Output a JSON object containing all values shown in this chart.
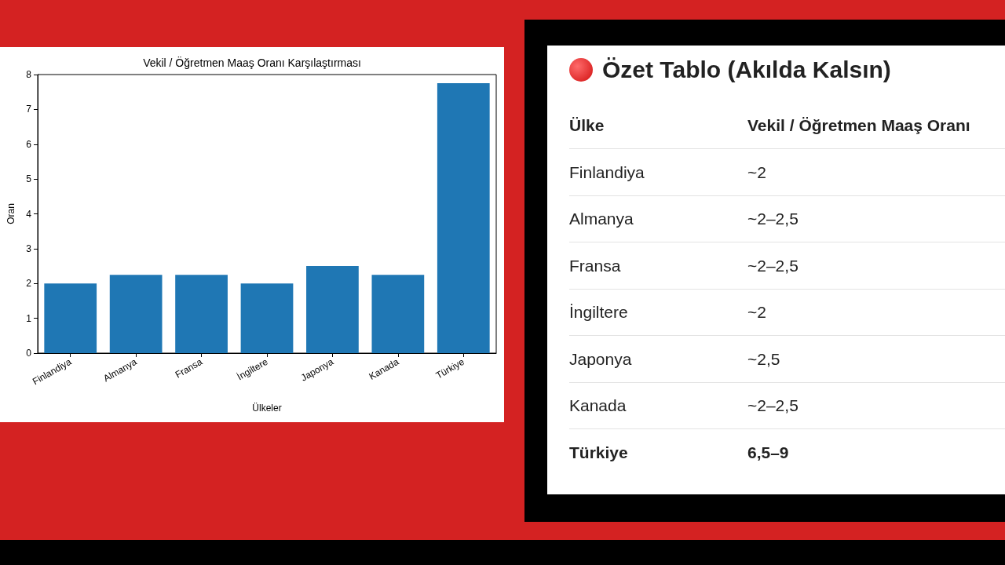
{
  "chart_data": [
    {
      "type": "bar",
      "title": "Vekil / Öğretmen Maaş Oranı Karşılaştırması",
      "xlabel": "Ülkeler",
      "ylabel": "Oran",
      "categories": [
        "Finlandiya",
        "Almanya",
        "Fransa",
        "İngiltere",
        "Japonya",
        "Kanada",
        "Türkiye"
      ],
      "values": [
        2,
        2.25,
        2.25,
        2,
        2.5,
        2.25,
        7.75
      ],
      "color": "#1f77b4",
      "ylim": [
        0,
        8
      ],
      "yticks": [
        0,
        1,
        2,
        3,
        4,
        5,
        6,
        7,
        8
      ],
      "grid": false
    },
    {
      "type": "other",
      "title": "Özet Tablo (Akılda Kalsın)",
      "annotations": [
        "Ülke",
        "Vekil / Öğretmen Maaş Oranı",
        "Finlandiya",
        "~2",
        "Almanya",
        "~2–2,5",
        "Fransa",
        "~2–2,5",
        "İngiltere",
        "~2",
        "Japonya",
        "~2,5",
        "Kanada",
        "~2–2,5",
        "Türkiye",
        "6,5–9"
      ]
    }
  ]
}
